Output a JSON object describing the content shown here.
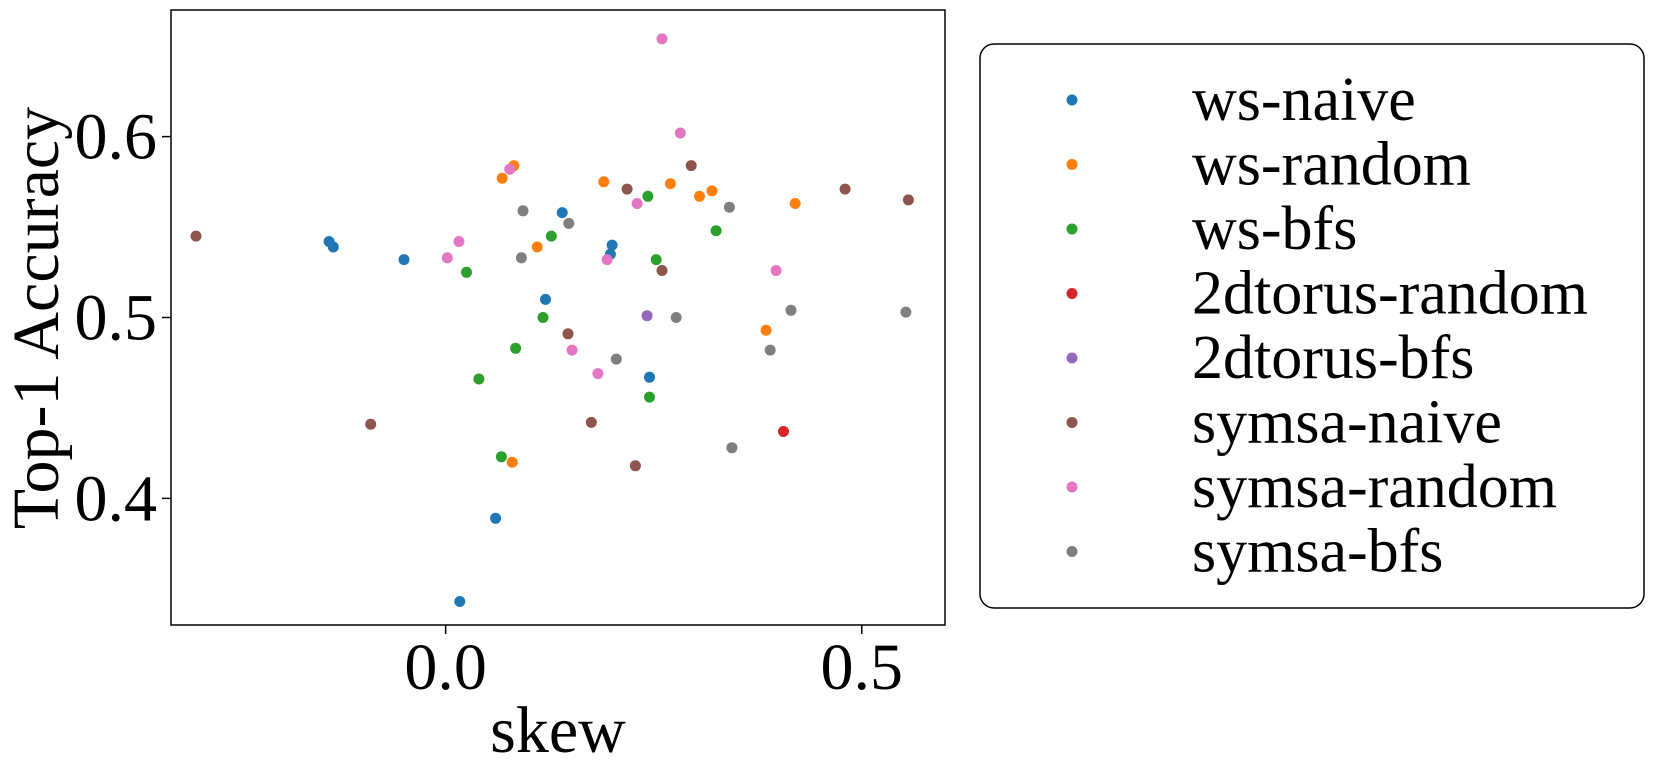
{
  "chart_data": {
    "type": "scatter",
    "title": "",
    "xlabel": "skew",
    "ylabel": "Top-1 Accuracy",
    "xlim": [
      -0.33,
      0.6
    ],
    "ylim": [
      0.33,
      0.67
    ],
    "xticks": [
      {
        "value": 0.0,
        "label": "0.0"
      },
      {
        "value": 0.5,
        "label": "0.5"
      }
    ],
    "yticks": [
      {
        "value": 0.4,
        "label": "0.4"
      },
      {
        "value": 0.5,
        "label": "0.5"
      },
      {
        "value": 0.6,
        "label": "0.6"
      }
    ],
    "grid": false,
    "legend_position": "outside-right",
    "series": [
      {
        "name": "ws-naive",
        "color": "#1f77b4",
        "points": [
          [
            -0.14,
            0.542
          ],
          [
            -0.135,
            0.539
          ],
          [
            -0.05,
            0.532
          ],
          [
            0.12,
            0.51
          ],
          [
            0.14,
            0.558
          ],
          [
            0.2,
            0.54
          ],
          [
            0.198,
            0.535
          ],
          [
            0.245,
            0.467
          ],
          [
            0.06,
            0.389
          ],
          [
            0.017,
            0.343
          ]
        ]
      },
      {
        "name": "ws-random",
        "color": "#ff7f0e",
        "points": [
          [
            0.068,
            0.577
          ],
          [
            0.082,
            0.584
          ],
          [
            0.11,
            0.539
          ],
          [
            0.19,
            0.575
          ],
          [
            0.27,
            0.574
          ],
          [
            0.305,
            0.567
          ],
          [
            0.32,
            0.57
          ],
          [
            0.42,
            0.563
          ],
          [
            0.385,
            0.493
          ],
          [
            0.08,
            0.42
          ]
        ]
      },
      {
        "name": "ws-bfs",
        "color": "#2ca02c",
        "points": [
          [
            0.243,
            0.567
          ],
          [
            0.325,
            0.548
          ],
          [
            0.127,
            0.545
          ],
          [
            0.253,
            0.532
          ],
          [
            0.025,
            0.525
          ],
          [
            0.117,
            0.5
          ],
          [
            0.084,
            0.483
          ],
          [
            0.04,
            0.466
          ],
          [
            0.245,
            0.456
          ],
          [
            0.067,
            0.423
          ]
        ]
      },
      {
        "name": "2dtorus-random",
        "color": "#d62728",
        "points": [
          [
            0.406,
            0.437
          ]
        ]
      },
      {
        "name": "2dtorus-bfs",
        "color": "#9467bd",
        "points": [
          [
            0.242,
            0.501
          ]
        ]
      },
      {
        "name": "symsa-naive",
        "color": "#8c564b",
        "points": [
          [
            -0.3,
            0.545
          ],
          [
            0.218,
            0.571
          ],
          [
            0.295,
            0.584
          ],
          [
            0.48,
            0.571
          ],
          [
            0.556,
            0.565
          ],
          [
            0.26,
            0.526
          ],
          [
            0.147,
            0.491
          ],
          [
            -0.09,
            0.441
          ],
          [
            0.175,
            0.442
          ],
          [
            0.228,
            0.418
          ]
        ]
      },
      {
        "name": "symsa-random",
        "color": "#e377c2",
        "points": [
          [
            0.26,
            0.654
          ],
          [
            0.282,
            0.602
          ],
          [
            0.077,
            0.582
          ],
          [
            0.23,
            0.563
          ],
          [
            0.016,
            0.542
          ],
          [
            0.002,
            0.533
          ],
          [
            0.194,
            0.532
          ],
          [
            0.397,
            0.526
          ],
          [
            0.152,
            0.482
          ],
          [
            0.183,
            0.469
          ]
        ]
      },
      {
        "name": "symsa-bfs",
        "color": "#7f7f7f",
        "points": [
          [
            0.341,
            0.561
          ],
          [
            0.093,
            0.559
          ],
          [
            0.148,
            0.552
          ],
          [
            0.091,
            0.533
          ],
          [
            0.415,
            0.504
          ],
          [
            0.553,
            0.503
          ],
          [
            0.277,
            0.5
          ],
          [
            0.39,
            0.482
          ],
          [
            0.205,
            0.477
          ],
          [
            0.344,
            0.428
          ]
        ]
      }
    ]
  }
}
